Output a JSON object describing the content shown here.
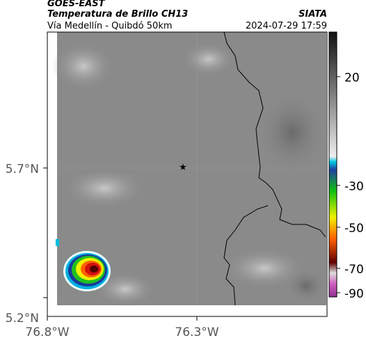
{
  "header": {
    "source": "GOES-EAST",
    "title": "Temperatura de Brillo CH13",
    "org": "SIATA",
    "subtitle": "Vía Medellín - Quibdó 50km",
    "timestamp": "2024-07-29 17:59"
  },
  "map": {
    "lat_labels": [
      "5.7°N",
      "5.2°N"
    ],
    "lon_labels": [
      "76.8°W",
      "76.3°W"
    ]
  },
  "colorbar": {
    "ticks": [
      20,
      -30,
      -50,
      -70,
      -90
    ]
  }
}
